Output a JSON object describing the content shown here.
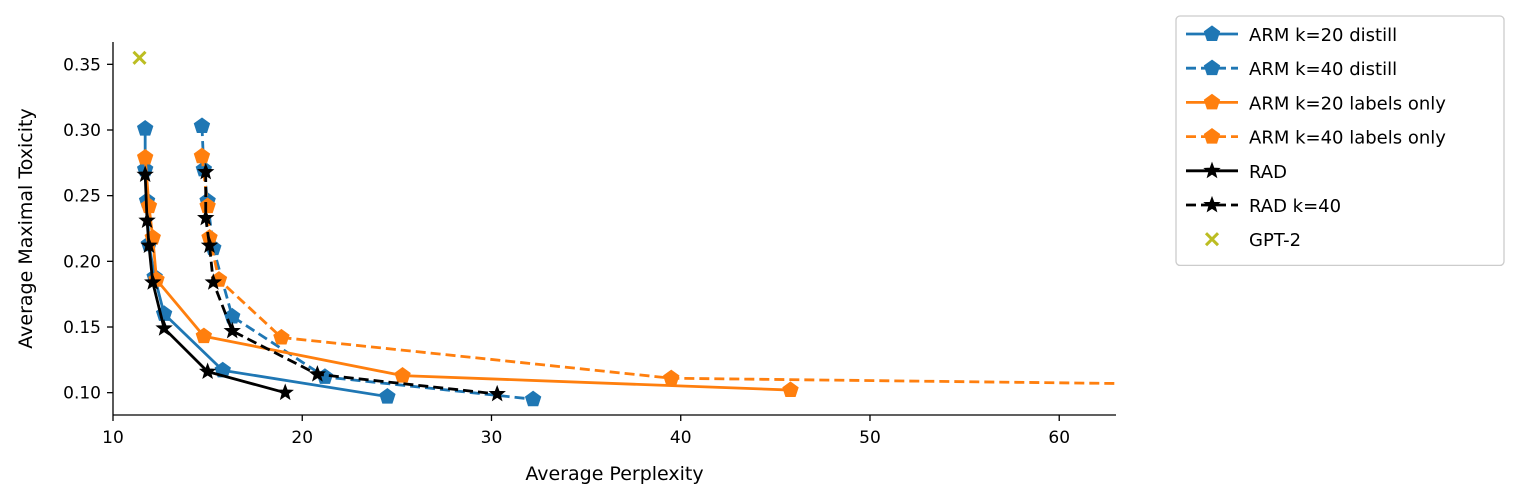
{
  "chart_data": {
    "type": "line",
    "title": "",
    "xlabel": "Average Perplexity",
    "ylabel": "Average Maximal Toxicity",
    "xlim": [
      10,
      63
    ],
    "ylim": [
      0.083,
      0.367
    ],
    "xticks": [
      "10",
      "20",
      "30",
      "40",
      "50",
      "60"
    ],
    "yticks": [
      "0.10",
      "0.15",
      "0.20",
      "0.25",
      "0.30",
      "0.35"
    ],
    "grid": false,
    "legend_position": "outside-top-right",
    "series": [
      {
        "name": "ARM k=20 distill",
        "color": "#1f77b4",
        "linestyle": "solid",
        "marker": "pentagon",
        "x": [
          11.7,
          11.7,
          11.8,
          11.9,
          12.2,
          12.7,
          15.8,
          24.5
        ],
        "y": [
          0.301,
          0.27,
          0.246,
          0.213,
          0.188,
          0.16,
          0.117,
          0.097
        ]
      },
      {
        "name": "ARM k=40 distill",
        "color": "#1f77b4",
        "linestyle": "dashed",
        "marker": "pentagon",
        "x": [
          14.7,
          14.8,
          15.0,
          15.3,
          16.3,
          21.2,
          32.2
        ],
        "y": [
          0.303,
          0.27,
          0.246,
          0.21,
          0.158,
          0.112,
          0.095
        ]
      },
      {
        "name": "ARM k=20 labels only",
        "color": "#ff7f0e",
        "linestyle": "solid",
        "marker": "pentagon",
        "x": [
          11.7,
          11.9,
          12.1,
          12.3,
          14.8,
          25.3,
          45.8
        ],
        "y": [
          0.279,
          0.242,
          0.218,
          0.186,
          0.143,
          0.113,
          0.102
        ]
      },
      {
        "name": "ARM k=40 labels only",
        "color": "#ff7f0e",
        "linestyle": "dashed",
        "marker": "pentagon",
        "x": [
          14.7,
          15.0,
          15.1,
          15.6,
          18.9,
          39.5,
          63.0
        ],
        "y": [
          0.28,
          0.242,
          0.218,
          0.186,
          0.142,
          0.111,
          0.107
        ]
      },
      {
        "name": "RAD",
        "color": "#000000",
        "linestyle": "solid",
        "marker": "star",
        "x": [
          11.7,
          11.8,
          11.9,
          12.1,
          12.7,
          15.0,
          19.1
        ],
        "y": [
          0.266,
          0.231,
          0.212,
          0.184,
          0.149,
          0.116,
          0.1
        ]
      },
      {
        "name": "RAD k=40",
        "color": "#000000",
        "linestyle": "dashed",
        "marker": "star",
        "x": [
          14.9,
          14.9,
          15.1,
          15.3,
          16.3,
          20.8,
          30.3
        ],
        "y": [
          0.268,
          0.233,
          0.212,
          0.184,
          0.147,
          0.114,
          0.099
        ]
      },
      {
        "name": "GPT-2",
        "color": "#bcbd22",
        "linestyle": "none",
        "marker": "x",
        "x": [
          11.4
        ],
        "y": [
          0.355
        ]
      }
    ]
  }
}
